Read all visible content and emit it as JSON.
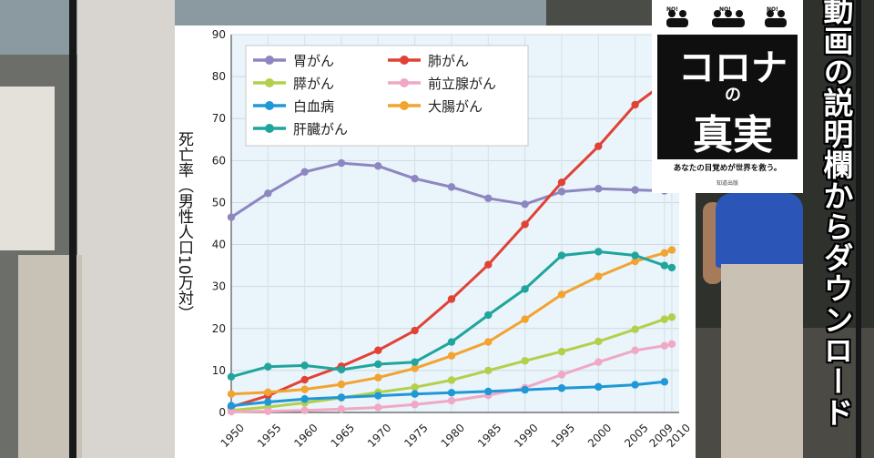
{
  "chart_data": {
    "type": "line",
    "ylabel": "死亡率（男性人口10万対）",
    "ylim": [
      0,
      90
    ],
    "yticks": [
      0,
      10,
      20,
      30,
      40,
      50,
      60,
      70,
      80,
      90
    ],
    "x_labels": [
      "1950",
      "1955",
      "1960",
      "1965",
      "1970",
      "1975",
      "1980",
      "1985",
      "1990",
      "1995",
      "2000",
      "2005",
      "2009",
      "2010"
    ],
    "grid": true,
    "legend_position": "top-left",
    "series": [
      {
        "name": "胃がん",
        "color": "#8e86c0",
        "x": [
          1950,
          1955,
          1960,
          1965,
          1970,
          1975,
          1980,
          1985,
          1990,
          1995,
          2000,
          2005,
          2009
        ],
        "values": [
          46.5,
          52.2,
          57.3,
          59.4,
          58.7,
          55.7,
          53.7,
          51.0,
          49.6,
          52.6,
          53.3,
          53.0,
          52.8
        ]
      },
      {
        "name": "肺がん",
        "color": "#e04235",
        "x": [
          1950,
          1955,
          1960,
          1965,
          1970,
          1975,
          1980,
          1985,
          1990,
          1995,
          2000,
          2005,
          2009
        ],
        "values": [
          1.3,
          4.0,
          7.8,
          11.0,
          14.8,
          19.5,
          27.0,
          35.2,
          44.8,
          54.8,
          63.4,
          73.3,
          78.5
        ]
      },
      {
        "name": "膵がん",
        "color": "#b4cf4a",
        "x": [
          1950,
          1955,
          1960,
          1965,
          1970,
          1975,
          1980,
          1985,
          1990,
          1995,
          2000,
          2005,
          2009,
          2010
        ],
        "values": [
          0.5,
          1.3,
          2.3,
          3.5,
          4.8,
          6.0,
          7.7,
          10.0,
          12.3,
          14.5,
          16.9,
          19.8,
          22.2,
          22.7
        ]
      },
      {
        "name": "前立腺がん",
        "color": "#f0a8c4",
        "x": [
          1950,
          1955,
          1960,
          1965,
          1970,
          1975,
          1980,
          1985,
          1990,
          1995,
          2000,
          2005,
          2009,
          2010
        ],
        "values": [
          0.2,
          0.3,
          0.5,
          0.8,
          1.2,
          1.9,
          2.8,
          4.1,
          5.9,
          9.0,
          12.0,
          14.8,
          15.9,
          16.3
        ]
      },
      {
        "name": "白血病",
        "color": "#1e98d6",
        "x": [
          1950,
          1955,
          1960,
          1965,
          1970,
          1975,
          1980,
          1985,
          1990,
          1995,
          2000,
          2005,
          2009
        ],
        "values": [
          1.6,
          2.5,
          3.2,
          3.6,
          4.0,
          4.4,
          4.7,
          5.0,
          5.4,
          5.8,
          6.1,
          6.6,
          7.3
        ]
      },
      {
        "name": "大腸がん",
        "color": "#f2a330",
        "x": [
          1950,
          1955,
          1960,
          1965,
          1970,
          1975,
          1980,
          1985,
          1990,
          1995,
          2000,
          2005,
          2009,
          2010
        ],
        "values": [
          4.4,
          4.8,
          5.5,
          6.7,
          8.3,
          10.5,
          13.5,
          16.8,
          22.2,
          28.1,
          32.4,
          36.0,
          38.0,
          38.7
        ]
      },
      {
        "name": "肝臓がん",
        "color": "#1fa59c",
        "x": [
          1950,
          1955,
          1960,
          1965,
          1970,
          1975,
          1980,
          1985,
          1990,
          1995,
          2000,
          2005,
          2009,
          2010
        ],
        "values": [
          8.5,
          10.9,
          11.2,
          10.2,
          11.5,
          12.0,
          16.8,
          23.2,
          29.4,
          37.4,
          38.3,
          37.4,
          35.0,
          34.5
        ]
      }
    ]
  },
  "book": {
    "title_line1": "コロナ",
    "title_line2": "の",
    "title_line3": "真実",
    "subtitle": "あなたの目覚めが世界を救う。",
    "publisher": "知道出版",
    "icon_labels": [
      "NO!",
      "NO!",
      "NO!"
    ]
  },
  "caption": "動画の説明欄からダウンロードできま"
}
